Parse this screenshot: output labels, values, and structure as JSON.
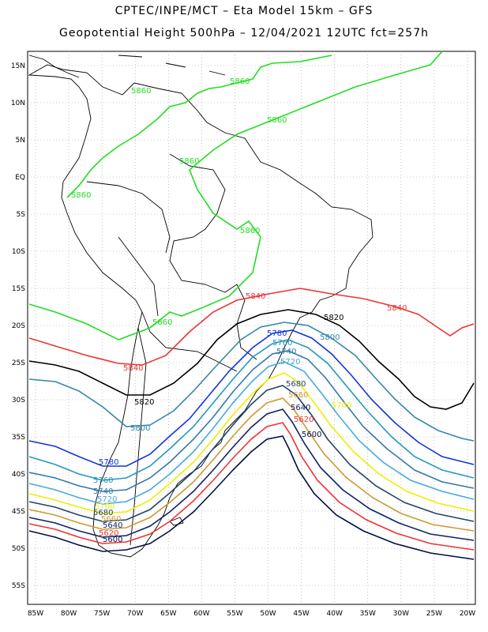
{
  "header": {
    "line1": "CPTEC/INPE/MCT –  Eta Model 15km – GFS",
    "line2": "Geopotential Height 500hPa – 12/04/2021 12UTC fct=257h"
  },
  "axes": {
    "lon_labels": [
      "85W",
      "80W",
      "75W",
      "70W",
      "65W",
      "60W",
      "55W",
      "50W",
      "45W",
      "40W",
      "35W",
      "30W",
      "25W",
      "20W"
    ],
    "lat_labels": [
      "15N",
      "10N",
      "5N",
      "EQ",
      "5S",
      "10S",
      "15S",
      "20S",
      "25S",
      "30S",
      "35S",
      "40S",
      "45S",
      "50S",
      "55S"
    ]
  },
  "contours": {
    "c5860": {
      "label": "5860",
      "color": "#22dd22"
    },
    "c5840": {
      "label": "5840",
      "color": "#ee3333"
    },
    "c5820": {
      "label": "5820",
      "color": "#000000"
    },
    "c5800": {
      "label": "5800",
      "color": "#3388aa"
    },
    "c5780": {
      "label": "5780",
      "color": "#1133dd"
    },
    "c5760": {
      "label": "5760",
      "color": "#2299bb"
    },
    "c5740": {
      "label": "5740",
      "color": "#3377aa"
    },
    "c5720": {
      "label": "5720",
      "color": "#44aadd"
    },
    "c5700": {
      "label": "5700",
      "color": "#eeee00"
    },
    "c5680": {
      "label": "5680",
      "color": "#224466"
    },
    "c5660": {
      "label": "5660",
      "color": "#cc9933"
    },
    "c5640": {
      "label": "5640",
      "color": "#112266"
    },
    "c5620": {
      "label": "5620",
      "color": "#ee3333"
    },
    "c5600": {
      "label": "5600",
      "color": "#001144"
    }
  }
}
